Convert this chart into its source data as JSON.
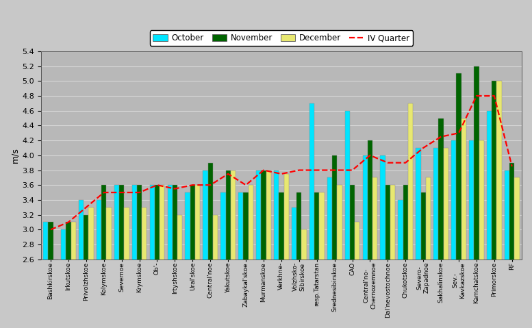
{
  "categories": [
    "Bashkirskoe",
    "Irkutskoe",
    "Privolzhskoe",
    "Kolymskoe",
    "Severnoe",
    "Krymskoe",
    "Ob'-",
    "Irtyshskoe",
    "Ural'skoe",
    "Central'noe",
    "Yakutskoe",
    "Zabaykal'skoe",
    "Murmanskoe",
    "Verkhnе-",
    "Volzhsko-\nSibirskoe",
    "resp.Tatarstan",
    "Srednesibirskoe",
    "CAO",
    "Central'no-\nChernozemnoe",
    "Dal'nevostochnoe",
    "Chukotskoe",
    "Severo-\nZapadnoe",
    "Sakhalinskoe",
    "Sev.-\nKavkazskoe",
    "Kamchatskoe",
    "Primorskoe",
    "RF"
  ],
  "october": [
    3.1,
    3.0,
    3.4,
    3.4,
    3.6,
    3.6,
    3.6,
    3.6,
    3.5,
    3.8,
    3.5,
    3.5,
    3.8,
    3.8,
    3.3,
    4.7,
    3.7,
    4.6,
    4.0,
    4.0,
    3.4,
    4.1,
    4.1,
    4.2,
    4.2,
    4.6,
    3.8
  ],
  "november": [
    3.1,
    3.1,
    3.2,
    3.6,
    3.6,
    3.6,
    3.6,
    3.6,
    3.6,
    3.9,
    3.8,
    3.5,
    3.8,
    3.5,
    3.5,
    3.5,
    4.0,
    3.6,
    4.2,
    3.6,
    3.6,
    3.5,
    4.5,
    5.1,
    5.2,
    5.0,
    3.9
  ],
  "december": [
    2.6,
    3.1,
    3.3,
    3.3,
    3.3,
    3.3,
    3.6,
    3.2,
    3.6,
    3.2,
    3.8,
    3.6,
    3.8,
    3.75,
    3.0,
    3.5,
    3.6,
    3.1,
    3.7,
    3.6,
    4.7,
    3.7,
    4.1,
    4.5,
    4.2,
    5.0,
    3.7
  ],
  "iv_quarter": [
    3.0,
    3.1,
    3.3,
    3.5,
    3.5,
    3.5,
    3.6,
    3.55,
    3.6,
    3.6,
    3.75,
    3.6,
    3.8,
    3.75,
    3.8,
    3.8,
    3.8,
    3.8,
    4.0,
    3.9,
    3.9,
    4.1,
    4.25,
    4.3,
    4.8,
    4.8,
    3.85
  ],
  "bar_width": 0.28,
  "october_color": "#00e5ff",
  "november_color": "#006400",
  "december_color": "#e8e870",
  "iv_quarter_color": "#ff0000",
  "fig_bg_color": "#c8c8c8",
  "plot_bg_color": "#b8b8b8",
  "grid_color": "#d8d8d8",
  "ylabel": "m/s",
  "ylim": [
    2.6,
    5.4
  ],
  "yticks": [
    2.6,
    2.8,
    3.0,
    3.2,
    3.4,
    3.6,
    3.8,
    4.0,
    4.2,
    4.4,
    4.6,
    4.8,
    5.0,
    5.2,
    5.4
  ],
  "legend_labels": [
    "October",
    "November",
    "December",
    "IV Quarter"
  ]
}
